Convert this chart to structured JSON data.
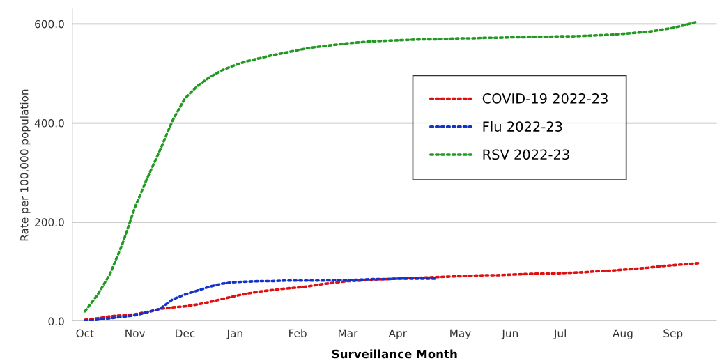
{
  "chart_data": {
    "type": "line",
    "xlabel": "Surveillance Month",
    "ylabel": "Rate per 100,000 population",
    "categories": [
      "Oct",
      null,
      null,
      null,
      "Nov",
      null,
      null,
      null,
      "Dec",
      null,
      null,
      null,
      "Jan",
      null,
      null,
      null,
      null,
      "Feb",
      null,
      null,
      null,
      "Mar",
      null,
      null,
      null,
      "Apr",
      null,
      null,
      null,
      null,
      "May",
      null,
      null,
      null,
      "Jun",
      null,
      null,
      null,
      "Jul",
      null,
      null,
      null,
      null,
      "Aug",
      null,
      null,
      null,
      "Sep",
      null,
      null
    ],
    "ylim": [
      0,
      630
    ],
    "yticks": [
      {
        "value": 0,
        "label": "0.0"
      },
      {
        "value": 200,
        "label": "200.0"
      },
      {
        "value": 400,
        "label": "400.0"
      },
      {
        "value": 600,
        "label": "600.0"
      }
    ],
    "grid": "y",
    "legend": "right",
    "line_style": "dotted",
    "marker": "none",
    "series": [
      {
        "name": "COVID-19 2022-23",
        "color": "#dd1111",
        "values": [
          3,
          6,
          10,
          12,
          14,
          19,
          25,
          28,
          30,
          34,
          39,
          45,
          51,
          56,
          60,
          63,
          66,
          68,
          71,
          75,
          78,
          81,
          82,
          84,
          85,
          86,
          87,
          88,
          89,
          90,
          91,
          92,
          93,
          93,
          94,
          95,
          96,
          96,
          97,
          98,
          99,
          101,
          102,
          104,
          106,
          108,
          111,
          113,
          115,
          117
        ]
      },
      {
        "name": "Flu 2022-23",
        "color": "#1133cc",
        "values": [
          1,
          3,
          6,
          9,
          12,
          18,
          25,
          44,
          54,
          62,
          70,
          76,
          79,
          80,
          81,
          81,
          82,
          82,
          82,
          82,
          83,
          83,
          84,
          85,
          85,
          86,
          86,
          86,
          86,
          null,
          null,
          null,
          null,
          null,
          null,
          null,
          null,
          null,
          null,
          null,
          null,
          null,
          null,
          null,
          null,
          null,
          null,
          null,
          null,
          null
        ]
      },
      {
        "name": "RSV 2022-23",
        "color": "#229922",
        "values": [
          20,
          53,
          95,
          156,
          230,
          290,
          345,
          405,
          450,
          475,
          493,
          507,
          517,
          525,
          531,
          537,
          542,
          547,
          552,
          555,
          558,
          561,
          563,
          565,
          566,
          567,
          568,
          569,
          569,
          570,
          571,
          571,
          572,
          572,
          573,
          573,
          574,
          574,
          575,
          575,
          576,
          577,
          578,
          580,
          582,
          584,
          588,
          592,
          598,
          605
        ]
      }
    ]
  }
}
